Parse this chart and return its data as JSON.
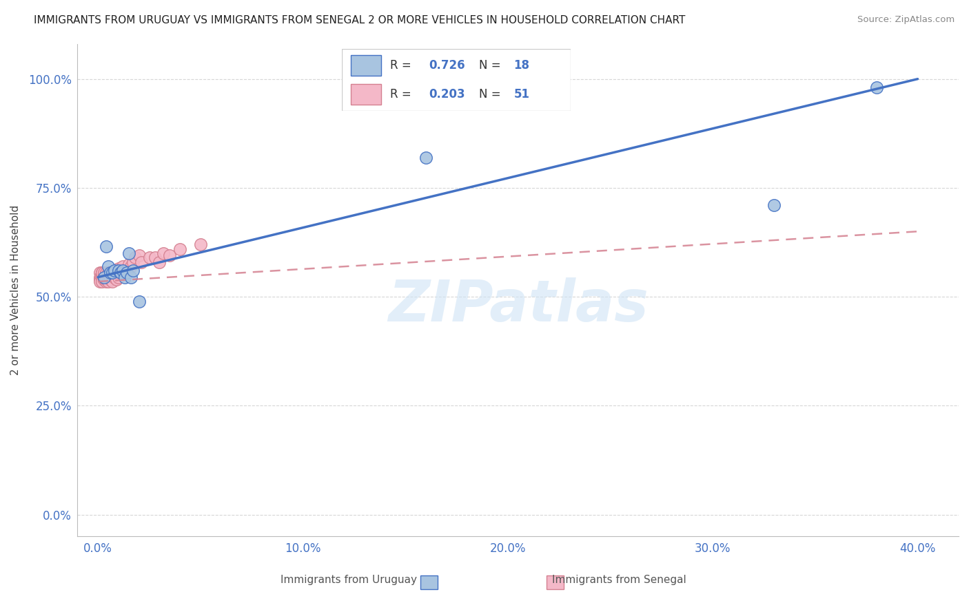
{
  "title": "IMMIGRANTS FROM URUGUAY VS IMMIGRANTS FROM SENEGAL 2 OR MORE VEHICLES IN HOUSEHOLD CORRELATION CHART",
  "source": "Source: ZipAtlas.com",
  "xlabel_ticks": [
    "0.0%",
    "10.0%",
    "20.0%",
    "30.0%",
    "40.0%"
  ],
  "xlabel_tick_vals": [
    0.0,
    0.1,
    0.2,
    0.3,
    0.4
  ],
  "ylabel_ticks": [
    "0.0%",
    "25.0%",
    "50.0%",
    "75.0%",
    "100.0%"
  ],
  "ylabel_tick_vals": [
    0.0,
    0.25,
    0.5,
    0.75,
    1.0
  ],
  "ylabel_label": "2 or more Vehicles in Household",
  "legend_label1": "Immigrants from Uruguay",
  "legend_label2": "Immigrants from Senegal",
  "R_uruguay": 0.726,
  "N_uruguay": 18,
  "R_senegal": 0.203,
  "N_senegal": 51,
  "uruguay_color": "#a8c4e0",
  "senegal_color": "#f4b8c8",
  "uruguay_line_color": "#4472c4",
  "senegal_line_color": "#d48090",
  "uruguay_scatter_x": [
    0.003,
    0.004,
    0.005,
    0.006,
    0.007,
    0.008,
    0.01,
    0.011,
    0.012,
    0.013,
    0.014,
    0.015,
    0.016,
    0.017,
    0.02,
    0.16,
    0.33,
    0.38
  ],
  "uruguay_scatter_y": [
    0.545,
    0.615,
    0.57,
    0.555,
    0.555,
    0.56,
    0.56,
    0.555,
    0.56,
    0.545,
    0.555,
    0.6,
    0.545,
    0.56,
    0.49,
    0.82,
    0.71,
    0.98
  ],
  "senegal_scatter_x": [
    0.001,
    0.001,
    0.001,
    0.001,
    0.002,
    0.002,
    0.002,
    0.002,
    0.003,
    0.003,
    0.003,
    0.003,
    0.004,
    0.004,
    0.004,
    0.004,
    0.004,
    0.005,
    0.005,
    0.005,
    0.005,
    0.006,
    0.006,
    0.006,
    0.007,
    0.007,
    0.007,
    0.008,
    0.008,
    0.009,
    0.009,
    0.01,
    0.01,
    0.01,
    0.011,
    0.012,
    0.013,
    0.014,
    0.015,
    0.016,
    0.017,
    0.018,
    0.02,
    0.021,
    0.025,
    0.028,
    0.03,
    0.032,
    0.035,
    0.04,
    0.05
  ],
  "senegal_scatter_y": [
    0.555,
    0.545,
    0.54,
    0.535,
    0.555,
    0.545,
    0.535,
    0.555,
    0.55,
    0.545,
    0.54,
    0.555,
    0.55,
    0.545,
    0.535,
    0.555,
    0.54,
    0.545,
    0.555,
    0.545,
    0.535,
    0.55,
    0.545,
    0.54,
    0.555,
    0.545,
    0.535,
    0.555,
    0.545,
    0.54,
    0.56,
    0.555,
    0.545,
    0.565,
    0.555,
    0.57,
    0.555,
    0.56,
    0.575,
    0.57,
    0.58,
    0.59,
    0.595,
    0.58,
    0.59,
    0.59,
    0.58,
    0.6,
    0.595,
    0.61,
    0.62
  ],
  "xlim": [
    -0.01,
    0.42
  ],
  "ylim": [
    -0.05,
    1.08
  ],
  "watermark_text": "ZIPatlas",
  "watermark_color": "#d0e4f5",
  "background_color": "#ffffff",
  "grid_color": "#cccccc",
  "uruguay_line_x": [
    0.0,
    0.4
  ],
  "uruguay_line_y": [
    0.545,
    1.0
  ],
  "senegal_line_x": [
    0.0,
    0.4
  ],
  "senegal_line_y": [
    0.535,
    0.65
  ]
}
